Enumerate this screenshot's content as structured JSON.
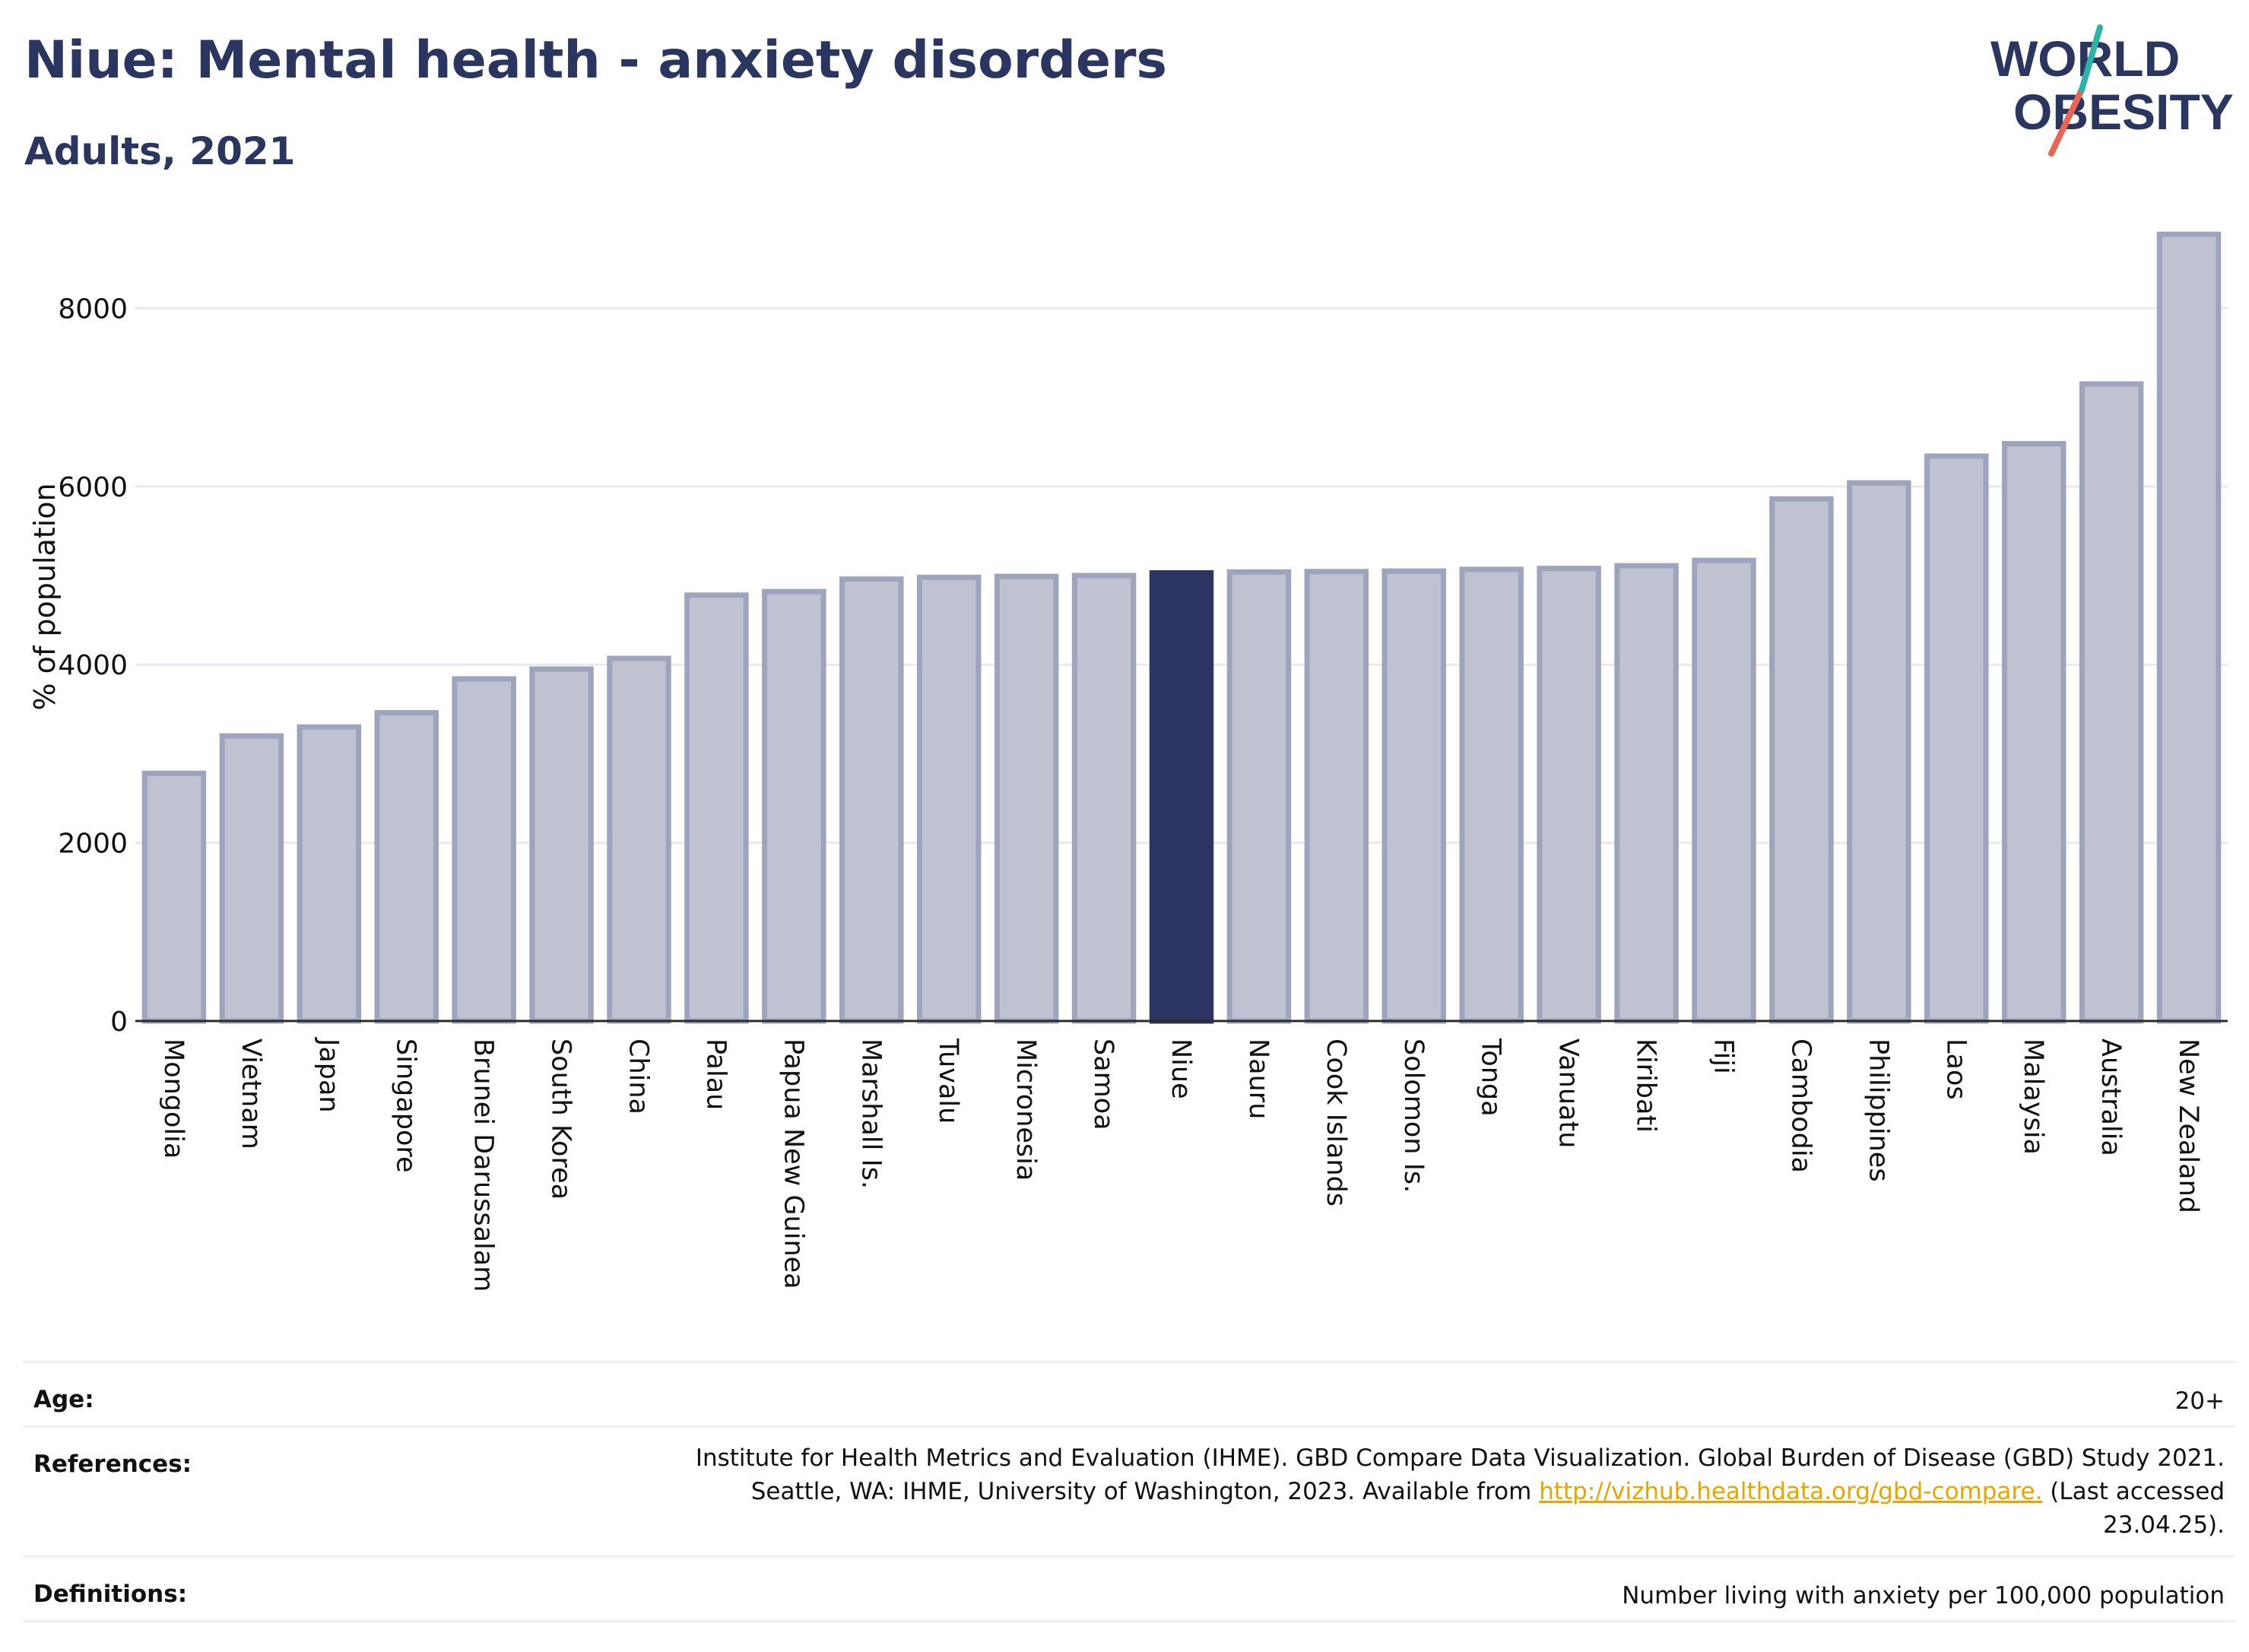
{
  "header": {
    "title": "Niue: Mental health - anxiety disorders",
    "subtitle": "Adults, 2021",
    "logo_line1": "WORLD",
    "logo_line2": "OBESITY"
  },
  "chart_data": {
    "type": "bar",
    "title": "Niue: Mental health - anxiety disorders",
    "subtitle": "Adults, 2021",
    "ylabel": "% of population",
    "xlabel": "",
    "ylim": [
      0,
      8900
    ],
    "yticks": [
      0,
      2000,
      4000,
      6000,
      8000
    ],
    "grid": true,
    "highlight": "Niue",
    "categories": [
      "Mongolia",
      "Vietnam",
      "Japan",
      "Singapore",
      "Brunei Darussalam",
      "South Korea",
      "China",
      "Palau",
      "Papua New Guinea",
      "Marshall Is.",
      "Tuvalu",
      "Micronesia",
      "Samoa",
      "Niue",
      "Nauru",
      "Cook Islands",
      "Solomon Is.",
      "Tonga",
      "Vanuatu",
      "Kiribati",
      "Fiji",
      "Cambodia",
      "Philippines",
      "Laos",
      "Malaysia",
      "Australia",
      "New Zealand"
    ],
    "values": [
      2780,
      3200,
      3300,
      3460,
      3840,
      3950,
      4070,
      4780,
      4820,
      4960,
      4980,
      4990,
      5000,
      5030,
      5040,
      5045,
      5050,
      5070,
      5080,
      5110,
      5170,
      5860,
      6040,
      6340,
      6480,
      7150,
      8830
    ],
    "colors": {
      "default_fill": "#bfc3d1",
      "default_stroke": "#9ea4bb",
      "highlight_fill": "#2c3561",
      "axis": "#2b2b2b",
      "grid": "#e8eaf1"
    }
  },
  "info_table": {
    "age_label": "Age:",
    "age_value": "20+",
    "references_label": "References:",
    "references_line1": "Institute for Health Metrics and Evaluation (IHME). GBD Compare Data Visualization. Global Burden of Disease (GBD) Study 2021.",
    "references_line2_pre": "Seattle, WA: IHME, University of Washington, 2023. Available from",
    "references_link": "http://vizhub.healthdata.org/gbd-compare.",
    "references_line2_post": "(Last accessed",
    "references_line3": "23.04.25).",
    "definitions_label": "Definitions:",
    "definitions_value": "Number living with anxiety per 100,000 population"
  }
}
